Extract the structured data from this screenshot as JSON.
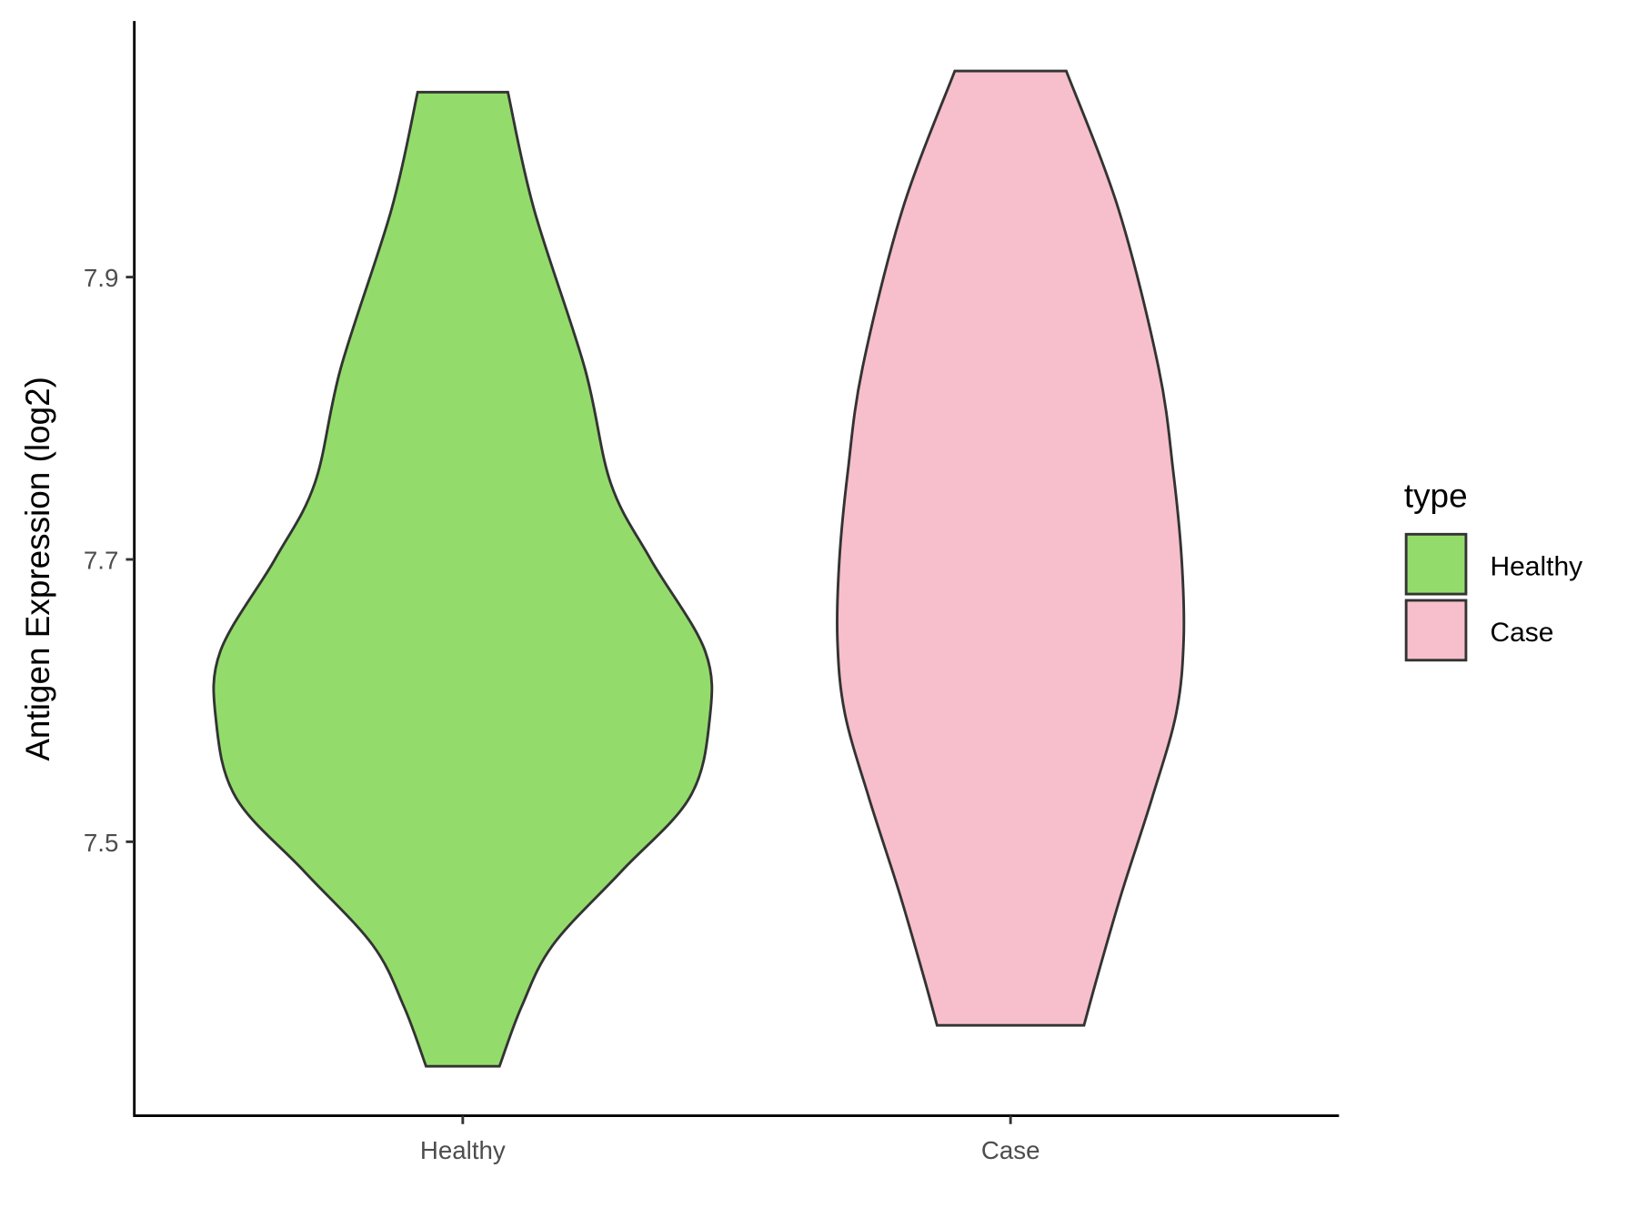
{
  "chart_data": {
    "type": "violin",
    "title": "",
    "xlabel": "",
    "ylabel": "Antigen Expression (log2)",
    "categories": [
      "Healthy",
      "Case"
    ],
    "yticks": [
      7.5,
      7.7,
      7.9
    ],
    "ytick_labels": [
      "7.5",
      "7.7",
      "7.9"
    ],
    "ylim": [
      7.31,
      8.08
    ],
    "grid": false,
    "legend": {
      "title": "type",
      "position": "right",
      "entries": [
        "Healthy",
        "Case"
      ]
    },
    "colors": {
      "Healthy": "#93dc6b",
      "Case": "#f7bfcb",
      "outline": "#333333"
    },
    "series": [
      {
        "name": "Healthy",
        "min": 7.341,
        "max": 8.031,
        "density_profile": [
          [
            8.031,
            0.183
          ],
          [
            7.948,
            0.289
          ],
          [
            7.836,
            0.494
          ],
          [
            7.754,
            0.6
          ],
          [
            7.7,
            0.762
          ],
          [
            7.635,
            0.983
          ],
          [
            7.585,
            1.0
          ],
          [
            7.531,
            0.919
          ],
          [
            7.479,
            0.643
          ],
          [
            7.427,
            0.366
          ],
          [
            7.383,
            0.238
          ],
          [
            7.341,
            0.149
          ]
        ]
      },
      {
        "name": "Case",
        "min": 7.37,
        "max": 8.046,
        "density_profile": [
          [
            8.046,
            0.226
          ],
          [
            7.948,
            0.438
          ],
          [
            7.836,
            0.6
          ],
          [
            7.762,
            0.66
          ],
          [
            7.7,
            0.694
          ],
          [
            7.643,
            0.702
          ],
          [
            7.591,
            0.672
          ],
          [
            7.531,
            0.574
          ],
          [
            7.464,
            0.451
          ],
          [
            7.405,
            0.353
          ],
          [
            7.37,
            0.298
          ]
        ]
      }
    ]
  }
}
